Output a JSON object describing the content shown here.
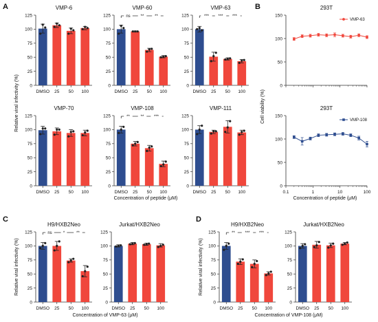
{
  "panel_labels": {
    "A": "A",
    "B": "B",
    "C": "C",
    "D": "D"
  },
  "colors": {
    "dmso": "#2e4d8f",
    "peptide": "#f0473c",
    "point": "#222222",
    "axis": "#333333"
  },
  "axis_labels": {
    "a_y": "Relative viral infectivity (%)",
    "a_x": "Concentration of peptide (μM)",
    "b_y": "Cell viability (%)",
    "b_x": "Concentration of peptide (μM)",
    "c_y": "Relative viral infectivity (%)",
    "c_x": "Concentration of VMP-63 (μM)",
    "d_y": "Relative viral infectivity (%)",
    "d_x": "Concentration of VMP-108 (μM)"
  },
  "chart_data": [
    {
      "type": "bar",
      "panel": "A",
      "title": "VMP-6",
      "categories": [
        "DMSO",
        "25",
        "50",
        "100"
      ],
      "values": [
        101,
        107,
        97,
        102
      ],
      "errors": [
        8,
        4,
        5,
        3
      ],
      "points": [
        [
          92,
          108,
          103
        ],
        [
          104,
          110,
          107
        ],
        [
          92,
          101,
          98
        ],
        [
          100,
          104,
          102
        ]
      ],
      "ylim": [
        0,
        125
      ],
      "yticks": [
        0,
        25,
        50,
        75,
        100,
        125
      ],
      "significance": []
    },
    {
      "type": "bar",
      "panel": "A",
      "title": "VMP-60",
      "categories": [
        "DMSO",
        "25",
        "50",
        "100"
      ],
      "values": [
        100,
        96,
        63,
        51
      ],
      "errors": [
        7,
        1,
        3,
        2
      ],
      "points": [
        [
          92,
          106,
          102
        ],
        [
          96,
          96,
          96
        ],
        [
          60,
          64,
          65
        ],
        [
          50,
          51,
          52
        ]
      ],
      "ylim": [
        0,
        125
      ],
      "yticks": [
        0,
        25,
        50,
        75,
        100,
        125
      ],
      "significance": [
        "ns",
        "**",
        "**"
      ]
    },
    {
      "type": "bar",
      "panel": "A",
      "title": "VMP-63",
      "categories": [
        "DMSO",
        "25",
        "50",
        "100"
      ],
      "values": [
        100,
        51,
        47,
        43
      ],
      "errors": [
        5,
        8,
        2,
        3
      ],
      "points": [
        [
          100,
          102,
          98
        ],
        [
          43,
          52,
          58
        ],
        [
          46,
          47,
          48
        ],
        [
          40,
          44,
          45
        ]
      ],
      "ylim": [
        0,
        125
      ],
      "yticks": [
        0,
        25,
        50,
        75,
        100,
        125
      ],
      "significance": [
        "***",
        "***",
        "***"
      ]
    },
    {
      "type": "bar",
      "panel": "A",
      "title": "VMP-70",
      "categories": [
        "DMSO",
        "25",
        "50",
        "100"
      ],
      "values": [
        99,
        97,
        94,
        94
      ],
      "errors": [
        7,
        6,
        6,
        5
      ],
      "points": [
        [
          92,
          102,
          102
        ],
        [
          91,
          100,
          100
        ],
        [
          88,
          96,
          97
        ],
        [
          90,
          95,
          98
        ]
      ],
      "ylim": [
        0,
        125
      ],
      "yticks": [
        0,
        25,
        50,
        75,
        100,
        125
      ],
      "significance": []
    },
    {
      "type": "bar",
      "panel": "A",
      "title": "VMP-108",
      "categories": [
        "DMSO",
        "25",
        "50",
        "100"
      ],
      "values": [
        100,
        75,
        67,
        39
      ],
      "errors": [
        6,
        4,
        5,
        5
      ],
      "points": [
        [
          94,
          100,
          105
        ],
        [
          72,
          75,
          78
        ],
        [
          62,
          68,
          70
        ],
        [
          35,
          38,
          43
        ]
      ],
      "ylim": [
        0,
        125
      ],
      "yticks": [
        0,
        25,
        50,
        75,
        100,
        125
      ],
      "significance": [
        "**",
        "**",
        "***"
      ]
    },
    {
      "type": "bar",
      "panel": "A",
      "title": "VMP-111",
      "categories": [
        "DMSO",
        "25",
        "50",
        "100"
      ],
      "values": [
        100,
        96,
        105,
        95
      ],
      "errors": [
        7,
        3,
        11,
        4
      ],
      "points": [
        [
          92,
          100,
          107
        ],
        [
          93,
          97,
          97
        ],
        [
          96,
          104,
          115
        ],
        [
          91,
          96,
          98
        ]
      ],
      "ylim": [
        0,
        125
      ],
      "yticks": [
        0,
        25,
        50,
        75,
        100,
        125
      ],
      "significance": []
    },
    {
      "type": "line",
      "panel": "B",
      "title": "293T",
      "xscale": "log",
      "legend": "VMP-63",
      "marker": "circle",
      "color": "#f0473c",
      "x": [
        0.2,
        0.4,
        0.8,
        1.6,
        3.2,
        6.4,
        12.8,
        25,
        50,
        100
      ],
      "y": [
        99,
        105,
        106,
        108,
        107,
        108,
        106,
        104,
        107,
        103
      ],
      "errors": [
        3,
        3,
        3,
        3,
        3,
        4,
        3,
        3,
        3,
        3
      ],
      "xlim": [
        0.1,
        100
      ],
      "xticks": [
        0.1,
        1,
        10,
        100
      ],
      "ylim": [
        0,
        150
      ],
      "yticks": [
        0,
        50,
        100,
        150
      ]
    },
    {
      "type": "line",
      "panel": "B",
      "title": "293T",
      "xscale": "log",
      "legend": "VMP-108",
      "marker": "square",
      "color": "#2e4d8f",
      "x": [
        0.2,
        0.4,
        0.8,
        1.6,
        3.2,
        6.4,
        12.8,
        25,
        50,
        100
      ],
      "y": [
        104,
        95,
        101,
        108,
        109,
        110,
        111,
        108,
        102,
        89
      ],
      "errors": [
        3,
        8,
        3,
        3,
        3,
        3,
        3,
        3,
        4,
        6
      ],
      "xlim": [
        0.1,
        100
      ],
      "xticks": [
        0.1,
        1,
        10,
        100
      ],
      "ylim": [
        0,
        150
      ],
      "yticks": [
        0,
        50,
        100,
        150
      ]
    },
    {
      "type": "bar",
      "panel": "C",
      "title": "H9/HXB2Neo",
      "categories": [
        "DMSO",
        "25",
        "50",
        "100"
      ],
      "values": [
        100,
        100,
        74,
        55
      ],
      "errors": [
        6,
        8,
        3,
        10
      ],
      "points": [
        [
          96,
          100,
          105
        ],
        [
          92,
          100,
          108
        ],
        [
          71,
          74,
          77
        ],
        [
          46,
          55,
          63
        ]
      ],
      "ylim": [
        0,
        125
      ],
      "yticks": [
        0,
        25,
        50,
        75,
        100,
        125
      ],
      "significance": [
        "ns",
        "*",
        "**"
      ]
    },
    {
      "type": "bar",
      "panel": "C",
      "title": "Jurkat/HXB2Neo",
      "categories": [
        "DMSO",
        "25",
        "50",
        "100"
      ],
      "values": [
        100,
        104,
        103,
        101
      ],
      "errors": [
        2,
        2,
        2,
        3
      ],
      "points": [
        [
          99,
          100,
          101
        ],
        [
          103,
          104,
          105
        ],
        [
          102,
          103,
          104
        ],
        [
          98,
          100,
          102
        ]
      ],
      "ylim": [
        0,
        125
      ],
      "yticks": [
        0,
        25,
        50,
        75,
        100,
        125
      ],
      "significance": []
    },
    {
      "type": "bar",
      "panel": "D",
      "title": "H9/HXB2Neo",
      "categories": [
        "DMSO",
        "25",
        "50",
        "100"
      ],
      "values": [
        100,
        72,
        68,
        51
      ],
      "errors": [
        6,
        5,
        7,
        3
      ],
      "points": [
        [
          93,
          100,
          104
        ],
        [
          68,
          72,
          76
        ],
        [
          62,
          68,
          73
        ],
        [
          48,
          51,
          54
        ]
      ],
      "ylim": [
        0,
        125
      ],
      "yticks": [
        0,
        25,
        50,
        75,
        100,
        125
      ],
      "significance": [
        "**",
        "***",
        "***"
      ]
    },
    {
      "type": "bar",
      "panel": "D",
      "title": "Jurkat/HXB2Neo",
      "categories": [
        "DMSO",
        "25",
        "50",
        "100"
      ],
      "values": [
        100,
        102,
        101,
        104
      ],
      "errors": [
        4,
        6,
        4,
        2
      ],
      "points": [
        [
          96,
          100,
          103
        ],
        [
          98,
          101,
          107
        ],
        [
          97,
          101,
          104
        ],
        [
          102,
          104,
          106
        ]
      ],
      "ylim": [
        0,
        125
      ],
      "yticks": [
        0,
        25,
        50,
        75,
        100,
        125
      ],
      "significance": []
    }
  ]
}
